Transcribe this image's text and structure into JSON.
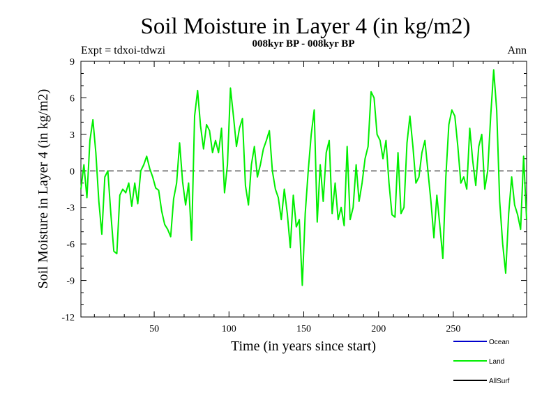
{
  "chart_data": {
    "type": "line",
    "title": "Soil Moisture in Layer 4 (in kg/m2)",
    "subtitle": "008kyr BP - 008kyr BP",
    "expt_label": "Expt = tdxoi-tdwzi",
    "season_label": "Ann",
    "xlabel": "Time (in years since start)",
    "ylabel": "Soil Moisture in Layer 4 (in kg/m2)",
    "xlim": [
      1,
      299
    ],
    "ylim": [
      -12,
      9
    ],
    "x_ticks": [
      50,
      100,
      150,
      200,
      250
    ],
    "y_ticks": [
      -12,
      -9,
      -6,
      -3,
      0,
      3,
      6,
      9
    ],
    "zero_line": "dashed",
    "legend_placement": "bottom-right, below plot",
    "series": [
      {
        "name": "Ocean",
        "color": "#0000cc",
        "x": [],
        "values": []
      },
      {
        "name": "Land",
        "color": "#00ee00",
        "x": [
          1,
          3,
          5,
          7,
          9,
          11,
          13,
          15,
          17,
          19,
          21,
          23,
          25,
          27,
          29,
          31,
          33,
          35,
          37,
          39,
          41,
          43,
          45,
          47,
          49,
          51,
          53,
          55,
          57,
          59,
          61,
          63,
          65,
          67,
          69,
          71,
          73,
          75,
          77,
          79,
          81,
          83,
          85,
          87,
          89,
          91,
          93,
          95,
          97,
          99,
          101,
          103,
          105,
          107,
          109,
          111,
          113,
          115,
          117,
          119,
          121,
          123,
          125,
          127,
          129,
          131,
          133,
          135,
          137,
          139,
          141,
          143,
          145,
          147,
          149,
          151,
          153,
          155,
          157,
          159,
          161,
          163,
          165,
          167,
          169,
          171,
          173,
          175,
          177,
          179,
          181,
          183,
          185,
          187,
          189,
          191,
          193,
          195,
          197,
          199,
          201,
          203,
          205,
          207,
          209,
          211,
          213,
          215,
          217,
          219,
          221,
          223,
          225,
          227,
          229,
          231,
          233,
          235,
          237,
          239,
          241,
          243,
          245,
          247,
          249,
          251,
          253,
          255,
          257,
          259,
          261,
          263,
          265,
          267,
          269,
          271,
          273,
          275,
          277,
          279,
          281,
          283,
          285,
          287,
          289,
          291,
          293,
          295,
          297,
          299
        ],
        "values": [
          -1.5,
          0.5,
          -2.2,
          2.5,
          4.2,
          1.5,
          -2.5,
          -5.2,
          -0.5,
          0.0,
          -3.5,
          -6.6,
          -6.8,
          -2.0,
          -1.5,
          -1.8,
          -1.0,
          -2.9,
          -1.0,
          -2.7,
          0.0,
          0.5,
          1.2,
          0.2,
          -0.5,
          -1.4,
          -1.6,
          -3.3,
          -4.4,
          -4.8,
          -5.4,
          -2.3,
          -1.0,
          2.3,
          -0.9,
          -2.8,
          -1.0,
          -5.7,
          4.5,
          6.6,
          3.7,
          1.8,
          3.8,
          3.3,
          1.5,
          2.5,
          1.5,
          3.5,
          -1.8,
          0.5,
          6.8,
          4.5,
          2.0,
          3.5,
          4.3,
          -1.2,
          -2.8,
          0.5,
          2.0,
          -0.5,
          0.5,
          1.8,
          2.5,
          3.3,
          0.0,
          -1.5,
          -2.2,
          -4.0,
          -1.5,
          -3.5,
          -6.3,
          -2.0,
          -4.6,
          -4.0,
          -9.4,
          -3.5,
          0.0,
          3.0,
          5.0,
          -4.2,
          0.5,
          -2.5,
          1.5,
          2.5,
          -3.5,
          -1.0,
          -4.0,
          -3.0,
          -4.5,
          2.0,
          -4.0,
          -3.0,
          0.5,
          -2.5,
          -1.0,
          1.0,
          2.0,
          6.5,
          6.0,
          3.0,
          2.5,
          1.0,
          2.5,
          -1.0,
          -3.6,
          -3.8,
          1.5,
          -3.5,
          -3.0,
          2.3,
          4.5,
          2.0,
          -1.0,
          -0.5,
          1.5,
          2.5,
          0.0,
          -2.5,
          -5.5,
          -2.0,
          -4.5,
          -7.2,
          -0.5,
          3.8,
          5.0,
          4.5,
          2.0,
          -1.0,
          -0.5,
          -1.5,
          3.5,
          0.8,
          -1.2,
          2.0,
          3.0,
          -1.5,
          0.0,
          4.5,
          8.3,
          5.0,
          -2.5,
          -6.0,
          -8.4,
          -3.5,
          -0.5,
          -2.8,
          -3.6,
          -4.8,
          1.2,
          -4.0
        ]
      },
      {
        "name": "AllSurf",
        "color": "#000000",
        "x": [],
        "values": []
      }
    ]
  }
}
